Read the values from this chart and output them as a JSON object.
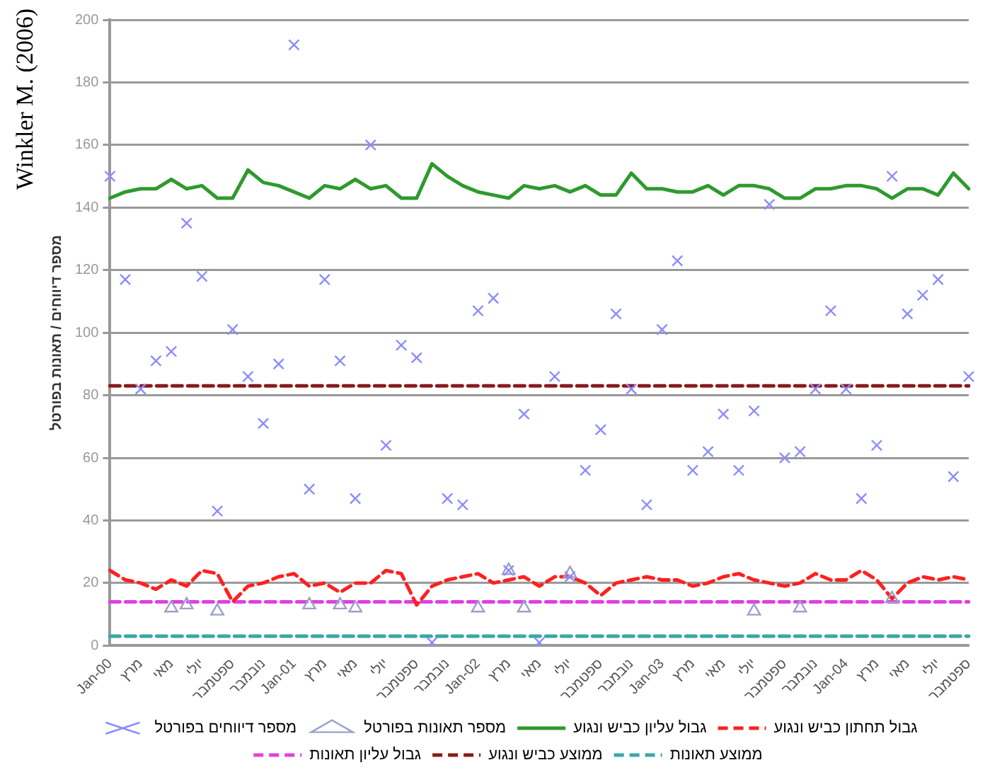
{
  "chart_data": {
    "type": "line",
    "ylabel": "מספר דיווחים / תאונות בפורטל",
    "annotations": [
      "Winkler M. (2006)"
    ],
    "categories": [
      "Jan-00",
      null,
      "מרץ",
      null,
      "מאי",
      null,
      "יולי",
      null,
      "ספטמבר",
      null,
      "נובמבר",
      null,
      "Jan-01",
      null,
      "מרץ",
      null,
      "מאי",
      null,
      "יולי",
      null,
      "ספטמבר",
      null,
      "נובמבר",
      null,
      "Jan-02",
      null,
      "מרץ",
      null,
      "מאי",
      null,
      "יולי",
      null,
      "ספטמבר",
      null,
      "נובמבר",
      null,
      "Jan-03",
      null,
      "מרץ",
      null,
      "מאי",
      null,
      "יולי",
      null,
      "ספטמבר",
      null,
      "נובמבר",
      null,
      "Jan-04",
      null,
      "מרץ",
      null,
      "מאי",
      null,
      "יולי",
      null,
      "ספטמבר"
    ],
    "series": [
      {
        "name": "מספר דיווחים בפורטל",
        "type": "scatter",
        "marker": "cross",
        "color": "#8c8cff",
        "values": [
          150,
          117,
          82,
          91,
          94,
          135,
          118,
          43,
          101,
          86,
          71,
          90,
          192,
          50,
          117,
          91,
          47,
          160,
          64,
          96,
          92,
          1,
          47,
          45,
          107,
          111,
          24,
          74,
          1,
          86,
          22,
          56,
          69,
          106,
          82,
          45,
          101,
          123,
          56,
          62,
          74,
          56,
          75,
          141,
          60,
          62,
          82,
          107,
          82,
          47,
          64,
          150,
          106,
          112,
          117,
          54,
          86
        ]
      },
      {
        "name": "מספר תאונות בפורטל",
        "type": "scatter",
        "marker": "triangle",
        "color": "#9aa0c8",
        "values": [
          null,
          null,
          null,
          null,
          12,
          13,
          null,
          11,
          null,
          null,
          null,
          null,
          null,
          13,
          null,
          13,
          12,
          null,
          null,
          null,
          null,
          null,
          null,
          null,
          12,
          null,
          24,
          12,
          null,
          null,
          23,
          null,
          null,
          null,
          null,
          null,
          null,
          null,
          null,
          null,
          null,
          null,
          11,
          null,
          null,
          12,
          null,
          null,
          null,
          null,
          null,
          15,
          null,
          null,
          null,
          null,
          null
        ]
      },
      {
        "name": "גבול עליון כביש ונגוע",
        "marker": "none",
        "line_style": "solid",
        "color": "#2e9a2e",
        "values": [
          143,
          145,
          146,
          146,
          149,
          146,
          147,
          143,
          143,
          152,
          148,
          147,
          145,
          143,
          147,
          146,
          149,
          146,
          147,
          143,
          143,
          154,
          150,
          147,
          145,
          144,
          143,
          147,
          146,
          147,
          145,
          147,
          144,
          144,
          151,
          146,
          146,
          145,
          145,
          147,
          144,
          147,
          147,
          146,
          143,
          143,
          146,
          146,
          147,
          147,
          146,
          143,
          146,
          146,
          144,
          151,
          146
        ]
      },
      {
        "name": "גבול תחתון כביש ונגוע",
        "marker": "none",
        "line_style": "dashed",
        "color": "#ff2020",
        "values": [
          24,
          21,
          20,
          18,
          21,
          19,
          24,
          23,
          14,
          19,
          20,
          22,
          23,
          19,
          20,
          17,
          20,
          20,
          24,
          23,
          13,
          19,
          21,
          22,
          23,
          20,
          21,
          22,
          19,
          22,
          22,
          20,
          16,
          20,
          21,
          22,
          21,
          21,
          19,
          20,
          22,
          23,
          21,
          20,
          19,
          20,
          23,
          21,
          21,
          24,
          21,
          15,
          20,
          22,
          21,
          22,
          21
        ]
      },
      {
        "name": "גבול עליון תאונות",
        "marker": "none",
        "line_style": "dashed",
        "color": "#e040e0",
        "values": [
          14,
          14,
          14,
          14,
          14,
          14,
          14,
          14,
          14,
          14,
          14,
          14,
          14,
          14,
          14,
          14,
          14,
          14,
          14,
          14,
          14,
          14,
          14,
          14,
          14,
          14,
          14,
          14,
          14,
          14,
          14,
          14,
          14,
          14,
          14,
          14,
          14,
          14,
          14,
          14,
          14,
          14,
          14,
          14,
          14,
          14,
          14,
          14,
          14,
          14,
          14,
          14,
          14,
          14,
          14,
          14,
          14
        ]
      },
      {
        "name": "ממוצע כביש ונגוע",
        "marker": "none",
        "line_style": "dashed",
        "color": "#8b1a1a",
        "values": [
          83,
          83,
          83,
          83,
          83,
          83,
          83,
          83,
          83,
          83,
          83,
          83,
          83,
          83,
          83,
          83,
          83,
          83,
          83,
          83,
          83,
          83,
          83,
          83,
          83,
          83,
          83,
          83,
          83,
          83,
          83,
          83,
          83,
          83,
          83,
          83,
          83,
          83,
          83,
          83,
          83,
          83,
          83,
          83,
          83,
          83,
          83,
          83,
          83,
          83,
          83,
          83,
          83,
          83,
          83,
          83,
          83
        ]
      },
      {
        "name": "ממוצע תאונות",
        "marker": "none",
        "line_style": "dashed",
        "color": "#3aa6a6",
        "values": [
          3,
          3,
          3,
          3,
          3,
          3,
          3,
          3,
          3,
          3,
          3,
          3,
          3,
          3,
          3,
          3,
          3,
          3,
          3,
          3,
          3,
          3,
          3,
          3,
          3,
          3,
          3,
          3,
          3,
          3,
          3,
          3,
          3,
          3,
          3,
          3,
          3,
          3,
          3,
          3,
          3,
          3,
          3,
          3,
          3,
          3,
          3,
          3,
          3,
          3,
          3,
          3,
          3,
          3,
          3,
          3,
          3
        ]
      }
    ],
    "ylim": [
      0,
      200
    ],
    "yticks": [
      0,
      20,
      40,
      60,
      80,
      100,
      120,
      140,
      160,
      180,
      200
    ],
    "grid": "y",
    "legend": "bottom"
  }
}
